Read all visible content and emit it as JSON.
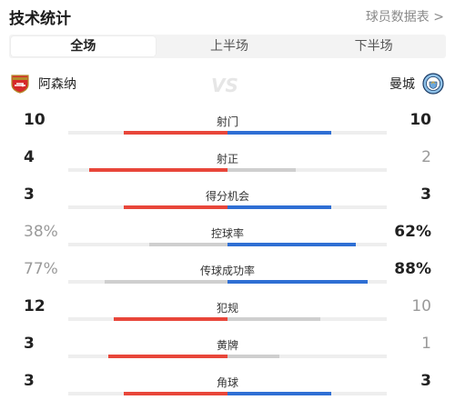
{
  "header": {
    "title": "技术统计",
    "link": "球员数据表 >"
  },
  "tabs": [
    "全场",
    "上半场",
    "下半场"
  ],
  "active_tab": 0,
  "teams": {
    "home": {
      "name": "阿森纳",
      "logo": "arsenal-badge-icon"
    },
    "away": {
      "name": "曼城",
      "logo": "manchester-city-badge-icon"
    },
    "vs": "VS"
  },
  "colors": {
    "home": "#e8463a",
    "away": "#2f6fd4",
    "home_dim": "#cfcfcf",
    "away_dim": "#cfcfcf"
  },
  "stats": [
    {
      "label": "射门",
      "home": "10",
      "away": "10",
      "home_share": 0.5,
      "away_share": 0.5,
      "home_dim": false,
      "away_dim": false
    },
    {
      "label": "射正",
      "home": "4",
      "away": "2",
      "home_share": 0.67,
      "away_share": 0.33,
      "home_dim": false,
      "away_dim": true
    },
    {
      "label": "得分机会",
      "home": "3",
      "away": "3",
      "home_share": 0.5,
      "away_share": 0.5,
      "home_dim": false,
      "away_dim": false
    },
    {
      "label": "控球率",
      "home": "38%",
      "away": "62%",
      "home_share": 0.38,
      "away_share": 0.62,
      "home_dim": true,
      "away_dim": false
    },
    {
      "label": "传球成功率",
      "home": "77%",
      "away": "88%",
      "home_share": 0.77,
      "away_share": 0.88,
      "home_dim": true,
      "away_dim": false
    },
    {
      "label": "犯规",
      "home": "12",
      "away": "10",
      "home_share": 0.55,
      "away_share": 0.45,
      "home_dim": false,
      "away_dim": true
    },
    {
      "label": "黄牌",
      "home": "3",
      "away": "1",
      "home_share": 0.75,
      "away_share": 0.25,
      "home_dim": false,
      "away_dim": true
    },
    {
      "label": "角球",
      "home": "3",
      "away": "3",
      "home_share": 0.5,
      "away_share": 0.5,
      "home_dim": false,
      "away_dim": false
    }
  ]
}
